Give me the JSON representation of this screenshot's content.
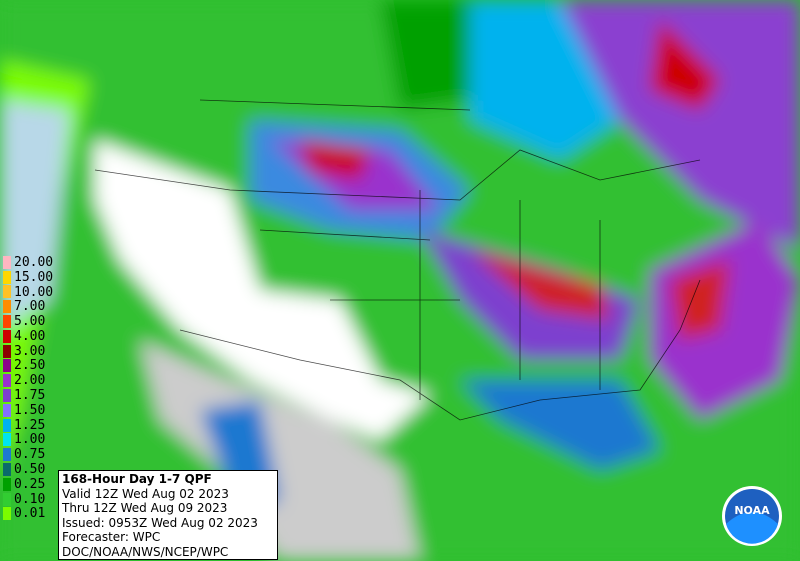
{
  "legend": {
    "items": [
      {
        "label": "20.00",
        "color": "#ffb6c1"
      },
      {
        "label": "15.00",
        "color": "#ffd700"
      },
      {
        "label": "10.00",
        "color": "#ffc125"
      },
      {
        "label": "7.00",
        "color": "#ff8c00"
      },
      {
        "label": "5.00",
        "color": "#ff4500"
      },
      {
        "label": "4.00",
        "color": "#cd0000"
      },
      {
        "label": "3.00",
        "color": "#8b0000"
      },
      {
        "label": "2.50",
        "color": "#8b008b"
      },
      {
        "label": "2.00",
        "color": "#9a32cd"
      },
      {
        "label": "1.75",
        "color": "#7d3fcf"
      },
      {
        "label": "1.50",
        "color": "#8470ff"
      },
      {
        "label": "1.25",
        "color": "#00b2ee"
      },
      {
        "label": "1.00",
        "color": "#00e5ee"
      },
      {
        "label": "0.75",
        "color": "#1e78d0"
      },
      {
        "label": "0.50",
        "color": "#0a6b6b"
      },
      {
        "label": "0.25",
        "color": "#00a000"
      },
      {
        "label": "0.10",
        "color": "#32cd32"
      },
      {
        "label": "0.01",
        "color": "#7cfc00"
      }
    ]
  },
  "info": {
    "title": "168-Hour Day 1-7 QPF",
    "lines": [
      "Valid 12Z Wed Aug 02 2023",
      "Thru 12Z Wed Aug 09 2023",
      "Issued: 0953Z Wed Aug 02 2023",
      "Forecaster: WPC",
      "DOC/NOAA/NWS/NCEP/WPC"
    ]
  },
  "logo": "NOAA"
}
